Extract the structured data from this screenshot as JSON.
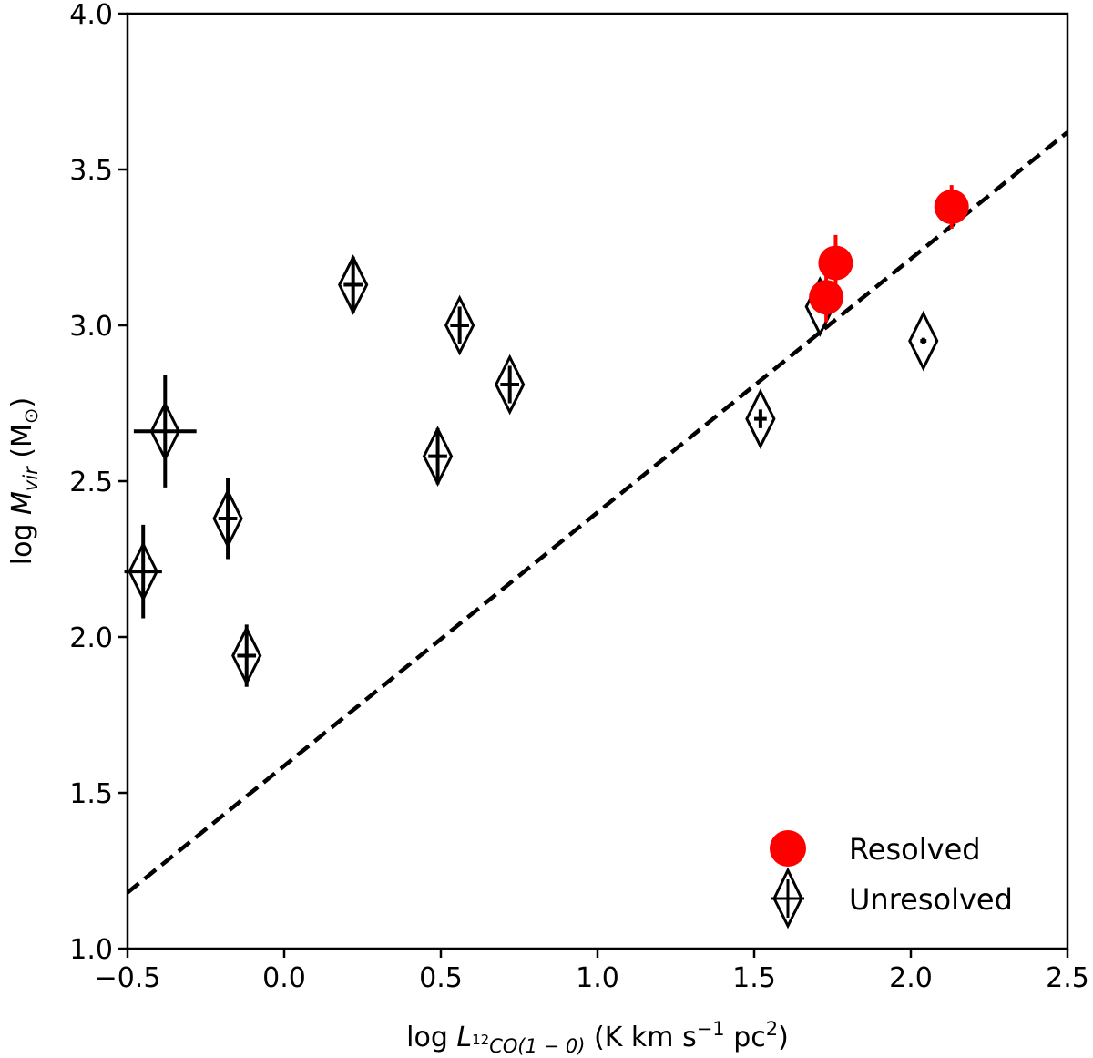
{
  "chart_data": {
    "type": "scatter",
    "xlabel": {
      "prefix": "log ",
      "var": "L",
      "sub_sup": "12",
      "sub": "CO(1 − 0)",
      "suffix": " (K km s",
      "sup1": "−1",
      "mid": " pc",
      "sup2": "2",
      "end": ")"
    },
    "ylabel": {
      "prefix": "log ",
      "var": "M",
      "sub": "vir",
      "suffix": " (M",
      "sun": "⊙",
      "end": ")"
    },
    "xlim": [
      -0.5,
      2.5
    ],
    "ylim": [
      1.0,
      4.0
    ],
    "xticks": [
      -0.5,
      0.0,
      0.5,
      1.0,
      1.5,
      2.0,
      2.5
    ],
    "xtick_labels": [
      "−0.5",
      "0.0",
      "0.5",
      "1.0",
      "1.5",
      "2.0",
      "2.5"
    ],
    "yticks": [
      1.0,
      1.5,
      2.0,
      2.5,
      3.0,
      3.5,
      4.0
    ],
    "ytick_labels": [
      "1.0",
      "1.5",
      "2.0",
      "2.5",
      "3.0",
      "3.5",
      "4.0"
    ],
    "fit_line": {
      "style": "dashed",
      "x": [
        -0.5,
        2.5
      ],
      "y": [
        1.18,
        3.62
      ]
    },
    "series": [
      {
        "name": "Resolved",
        "marker": "filled-circle",
        "color": "#ff0000",
        "points": [
          {
            "x": 1.73,
            "y": 3.09,
            "xerr": 0.0,
            "yerr": 0.08
          },
          {
            "x": 1.76,
            "y": 3.2,
            "xerr": 0.0,
            "yerr": 0.09
          },
          {
            "x": 2.13,
            "y": 3.38,
            "xerr": 0.0,
            "yerr": 0.07
          }
        ]
      },
      {
        "name": "Unresolved",
        "marker": "diamond",
        "color": "#000000",
        "points": [
          {
            "x": -0.45,
            "y": 2.21,
            "xerr": 0.06,
            "yerr": 0.15
          },
          {
            "x": -0.38,
            "y": 2.66,
            "xerr": 0.1,
            "yerr": 0.18
          },
          {
            "x": -0.18,
            "y": 2.38,
            "xerr": 0.03,
            "yerr": 0.13
          },
          {
            "x": -0.12,
            "y": 1.94,
            "xerr": 0.03,
            "yerr": 0.1
          },
          {
            "x": 0.22,
            "y": 3.13,
            "xerr": 0.03,
            "yerr": 0.09
          },
          {
            "x": 0.49,
            "y": 2.58,
            "xerr": 0.03,
            "yerr": 0.09
          },
          {
            "x": 0.56,
            "y": 3.0,
            "xerr": 0.03,
            "yerr": 0.06
          },
          {
            "x": 0.72,
            "y": 2.81,
            "xerr": 0.03,
            "yerr": 0.06
          },
          {
            "x": 1.52,
            "y": 2.7,
            "xerr": 0.02,
            "yerr": 0.03
          },
          {
            "x": 1.71,
            "y": 3.06,
            "xerr": 0.0,
            "yerr": 0.0
          },
          {
            "x": 2.04,
            "y": 2.95,
            "xerr": 0.01,
            "yerr": 0.01
          }
        ]
      }
    ],
    "legend": {
      "position": "bottom-right",
      "entries": [
        "Resolved",
        "Unresolved"
      ]
    }
  }
}
